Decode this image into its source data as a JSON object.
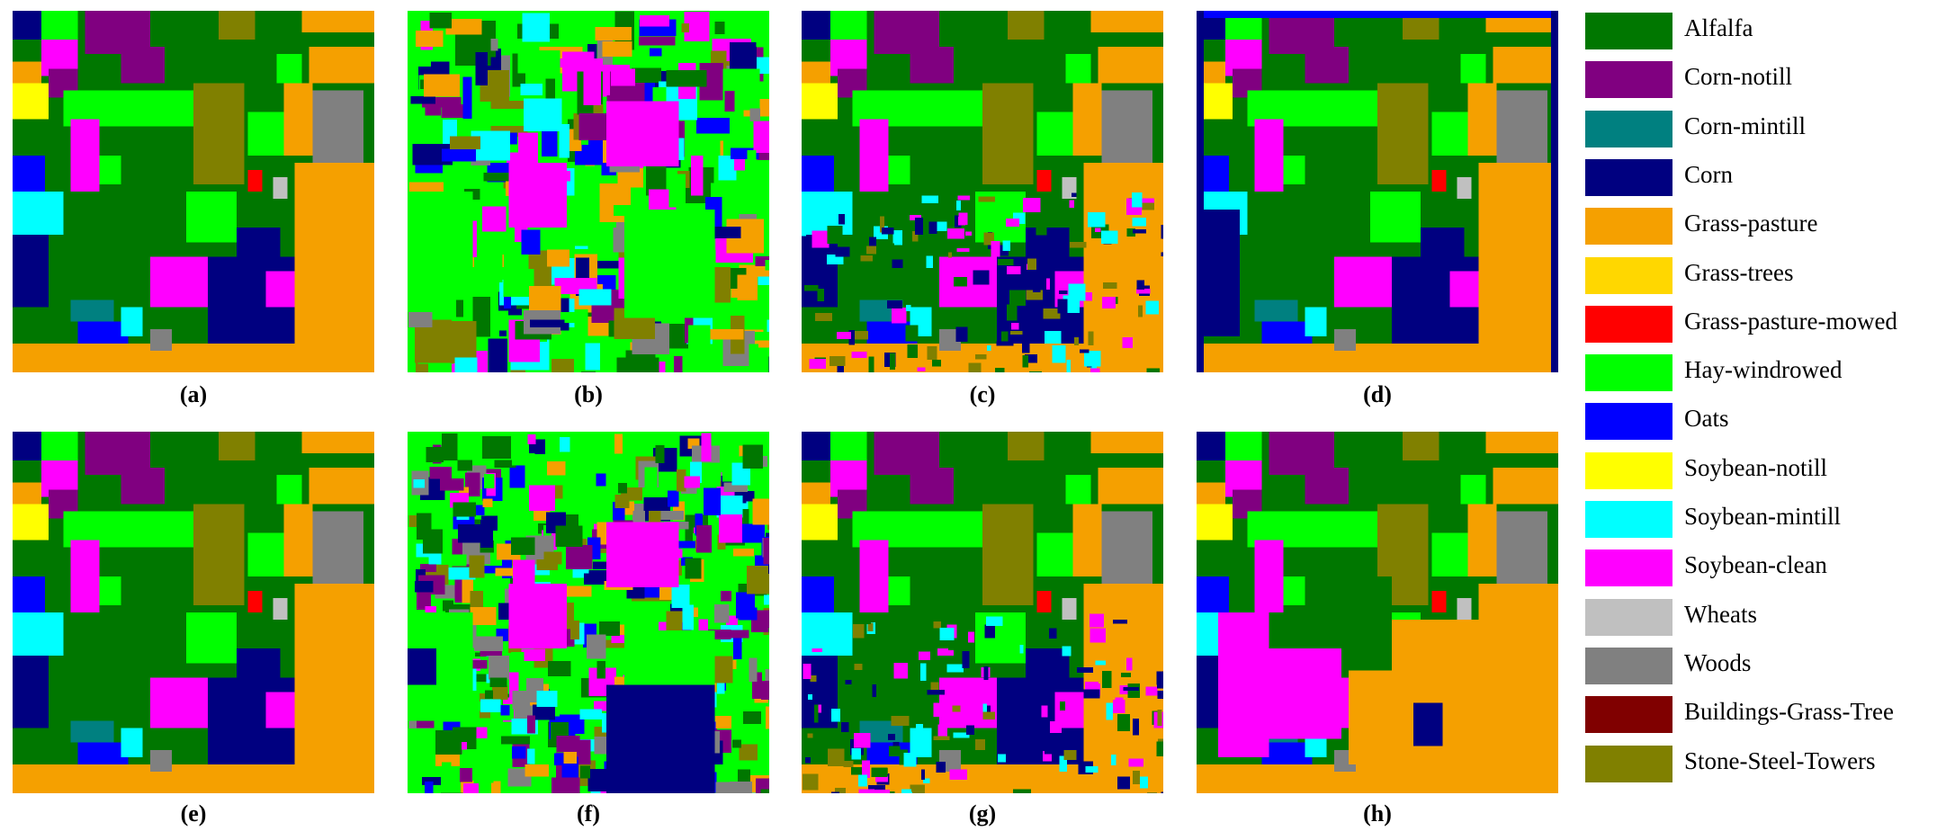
{
  "panels": [
    {
      "caption": "(a)",
      "base": "#f2a400",
      "style": "gt"
    },
    {
      "caption": "(b)",
      "base": "#00ff00",
      "style": "noisy-green"
    },
    {
      "caption": "(c)",
      "base": "#f2a400",
      "style": "gt-noisy"
    },
    {
      "caption": "(d)",
      "base": "#f2a400",
      "style": "gt-blue"
    },
    {
      "caption": "(e)",
      "base": "#f2a400",
      "style": "gt"
    },
    {
      "caption": "(f)",
      "base": "#00ff00",
      "style": "very-noisy"
    },
    {
      "caption": "(g)",
      "base": "#f2a400",
      "style": "gt-noisy"
    },
    {
      "caption": "(h)",
      "base": "#f2a400",
      "style": "orange-heavy"
    }
  ],
  "legend": [
    {
      "label": "Alfalfa",
      "color": "#007700"
    },
    {
      "label": "Corn-notill",
      "color": "#800080"
    },
    {
      "label": "Corn-mintill",
      "color": "#008080"
    },
    {
      "label": "Corn",
      "color": "#000080"
    },
    {
      "label": "Grass-pasture",
      "color": "#f5a000"
    },
    {
      "label": "Grass-trees",
      "color": "#ffd700"
    },
    {
      "label": "Grass-pasture-mowed",
      "color": "#ff0000"
    },
    {
      "label": "Hay-windrowed",
      "color": "#00ff00"
    },
    {
      "label": "Oats",
      "color": "#0000ff"
    },
    {
      "label": "Soybean-notill",
      "color": "#ffff00"
    },
    {
      "label": "Soybean-mintill",
      "color": "#00ffff"
    },
    {
      "label": "Soybean-clean",
      "color": "#ff00ff"
    },
    {
      "label": "Wheats",
      "color": "#c0c0c0"
    },
    {
      "label": "Woods",
      "color": "#808080"
    },
    {
      "label": "Buildings-Grass-Tree",
      "color": "#800000"
    },
    {
      "label": "Stone-Steel-Towers",
      "color": "#808000"
    }
  ]
}
